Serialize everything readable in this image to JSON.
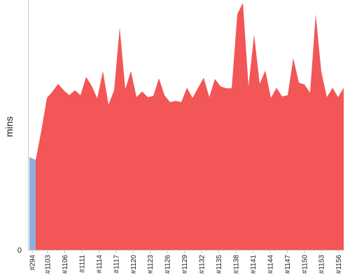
{
  "chart_data": {
    "type": "area",
    "ylabel": "mins",
    "y_ticks": [
      "0"
    ],
    "ylim": [
      0,
      100
    ],
    "x_tick_labels": [
      "#294",
      "#1103",
      "#1106",
      "#1111",
      "#1114",
      "#1117",
      "#1120",
      "#1123",
      "#1126",
      "#1129",
      "#1132",
      "#1135",
      "#1138",
      "#1141",
      "#1144",
      "#1147",
      "#1150",
      "#1153",
      "#1156"
    ],
    "series": [
      {
        "color": "#8eb0dd",
        "values": [
          37.6,
          36.4
        ]
      },
      {
        "color": "#f25656",
        "values": [
          36.4,
          48.2,
          61.5,
          64.1,
          67.2,
          64.6,
          62.6,
          64.6,
          62.6,
          70.0,
          66.4,
          61.3,
          72.4,
          58.8,
          64.6,
          90.0,
          65.1,
          72.4,
          61.8,
          64.1,
          61.8,
          62.3,
          69.5,
          62.6,
          59.8,
          60.3,
          59.8,
          65.6,
          61.5,
          65.6,
          69.7,
          61.8,
          69.2,
          66.2,
          65.4,
          65.4,
          95.4,
          100.0,
          66.2,
          87.2,
          67.2,
          72.6,
          61.5,
          65.6,
          62.1,
          62.6,
          77.6,
          67.7,
          66.9,
          63.6,
          95.4,
          72.1,
          61.8,
          65.6,
          61.8,
          65.6
        ]
      }
    ]
  }
}
